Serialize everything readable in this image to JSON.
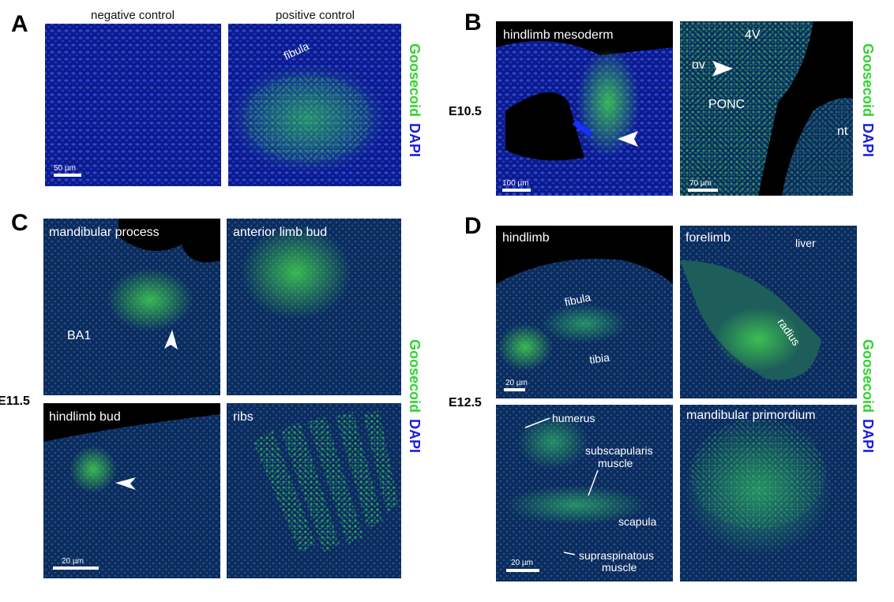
{
  "panel_a": {
    "letter": "A",
    "column_headers": [
      "negative control",
      "positive control"
    ],
    "labels": [
      "fibula"
    ],
    "scale_bar": "50 µm",
    "stain_labels": [
      "Goosecoid",
      "DAPI"
    ]
  },
  "panel_b": {
    "letter": "B",
    "stage": "E10.5",
    "labels": [
      "hindlimb mesoderm",
      "4V",
      "ov",
      "PONC",
      "nt"
    ],
    "scale_bars": [
      "100 µm",
      "70 µm"
    ],
    "stain_labels": [
      "Goosecoid",
      "DAPI"
    ]
  },
  "panel_c": {
    "letter": "C",
    "stage": "E11.5",
    "labels": [
      "mandibular process",
      "BA1",
      "anterior limb bud",
      "hindlimb bud",
      "ribs"
    ],
    "scale_bar": "20 µm",
    "stain_labels": [
      "Goosecoid",
      "DAPI"
    ]
  },
  "panel_d": {
    "letter": "D",
    "stage": "E12.5",
    "labels": [
      "hindlimb",
      "fibula",
      "tibia",
      "forelimb",
      "liver",
      "radius",
      "humerus",
      "subscapularis",
      "muscle",
      "scapula",
      "supraspinatous",
      "muscle",
      "mandibular primordium"
    ],
    "scale_bars": [
      "20 µm",
      "20 µm"
    ],
    "stain_labels": [
      "Goosecoid",
      "DAPI"
    ]
  }
}
